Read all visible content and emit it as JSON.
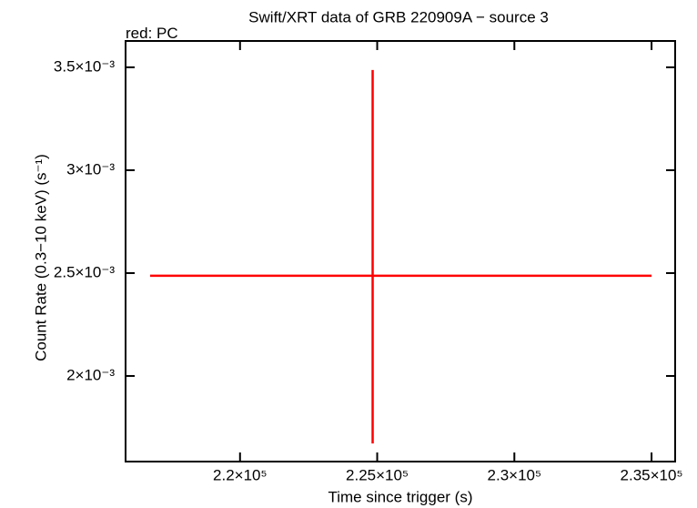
{
  "chart_data": {
    "type": "errorbar",
    "title": "Swift/XRT data of GRB 220909A − source 3",
    "subtitle": "red: PC",
    "x_label": "Time since trigger (s)",
    "y_label": "Count Rate (0.3−10 keV) (s⁻¹)",
    "series": [
      {
        "name": "PC",
        "color": "#ff0000",
        "x": [
          224834
        ],
        "values": [
          0.002487
        ],
        "xerr_minus": [
          8112
        ],
        "xerr_plus": [
          10166
        ],
        "yerr_minus": [
          0.000815
        ],
        "yerr_plus": [
          0.001
        ]
      }
    ],
    "xlim": [
      215828,
      235861
    ],
    "xticks": [
      {
        "value": 220000,
        "label": "2.2×10⁵"
      },
      {
        "value": 225000,
        "label": "2.25×10⁵"
      },
      {
        "value": 230000,
        "label": "2.3×10⁵"
      },
      {
        "value": 235000,
        "label": "2.35×10⁵"
      }
    ],
    "ylim": [
      0.001584,
      0.003628
    ],
    "yticks": [
      {
        "value": 0.002,
        "label": "2×10⁻³"
      },
      {
        "value": 0.0025,
        "label": "2.5×10⁻³"
      },
      {
        "value": 0.003,
        "label": "3×10⁻³"
      },
      {
        "value": 0.0035,
        "label": "3.5×10⁻³"
      }
    ]
  }
}
